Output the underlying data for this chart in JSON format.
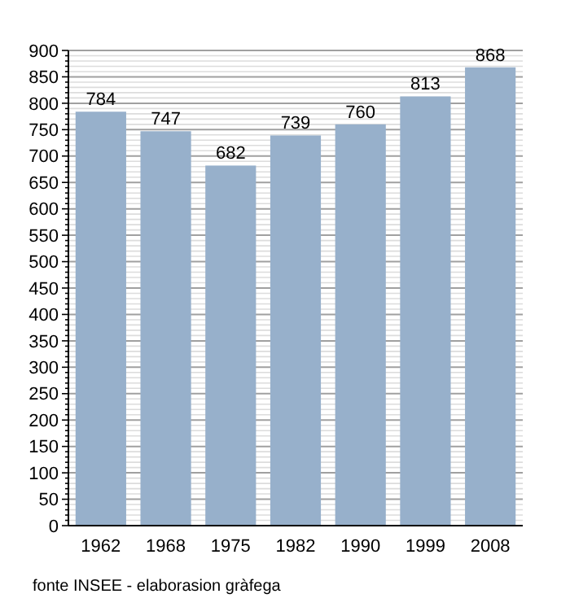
{
  "chart_data": {
    "type": "bar",
    "categories": [
      "1962",
      "1968",
      "1975",
      "1982",
      "1990",
      "1999",
      "2008"
    ],
    "values": [
      784,
      747,
      682,
      739,
      760,
      813,
      868
    ],
    "color": "#97b0cb",
    "data_labels": true,
    "grid": "y",
    "ylim": [
      0,
      900
    ],
    "yticks": [
      0,
      {
        "value": 10,
        "label": null
      },
      {
        "value": 20,
        "label": null
      },
      {
        "value": 30,
        "label": null
      },
      {
        "value": 40,
        "label": null
      },
      50,
      {
        "value": 60,
        "label": null
      },
      {
        "value": 70,
        "label": null
      },
      {
        "value": 80,
        "label": null
      },
      {
        "value": 90,
        "label": null
      },
      100,
      {
        "value": 110,
        "label": null
      },
      {
        "value": 120,
        "label": null
      },
      {
        "value": 130,
        "label": null
      },
      {
        "value": 140,
        "label": null
      },
      150,
      {
        "value": 160,
        "label": null
      },
      {
        "value": 170,
        "label": null
      },
      {
        "value": 180,
        "label": null
      },
      {
        "value": 190,
        "label": null
      },
      200,
      {
        "value": 210,
        "label": null
      },
      {
        "value": 220,
        "label": null
      },
      {
        "value": 230,
        "label": null
      },
      {
        "value": 240,
        "label": null
      },
      250,
      {
        "value": 260,
        "label": null
      },
      {
        "value": 270,
        "label": null
      },
      {
        "value": 280,
        "label": null
      },
      {
        "value": 290,
        "label": null
      },
      300,
      {
        "value": 310,
        "label": null
      },
      {
        "value": 320,
        "label": null
      },
      {
        "value": 330,
        "label": null
      },
      {
        "value": 340,
        "label": null
      },
      350,
      {
        "value": 360,
        "label": null
      },
      {
        "value": 370,
        "label": null
      },
      {
        "value": 380,
        "label": null
      },
      {
        "value": 390,
        "label": null
      },
      400,
      {
        "value": 410,
        "label": null
      },
      {
        "value": 420,
        "label": null
      },
      {
        "value": 430,
        "label": null
      },
      {
        "value": 440,
        "label": null
      },
      450,
      {
        "value": 460,
        "label": null
      },
      {
        "value": 470,
        "label": null
      },
      {
        "value": 480,
        "label": null
      },
      {
        "value": 490,
        "label": null
      },
      500,
      {
        "value": 510,
        "label": null
      },
      {
        "value": 520,
        "label": null
      },
      {
        "value": 530,
        "label": null
      },
      {
        "value": 540,
        "label": null
      },
      550,
      {
        "value": 560,
        "label": null
      },
      {
        "value": 570,
        "label": null
      },
      {
        "value": 580,
        "label": null
      },
      {
        "value": 590,
        "label": null
      },
      600,
      {
        "value": 610,
        "label": null
      },
      {
        "value": 620,
        "label": null
      },
      {
        "value": 630,
        "label": null
      },
      {
        "value": 640,
        "label": null
      },
      650,
      {
        "value": 660,
        "label": null
      },
      {
        "value": 670,
        "label": null
      },
      {
        "value": 680,
        "label": null
      },
      {
        "value": 690,
        "label": null
      },
      700,
      {
        "value": 710,
        "label": null
      },
      {
        "value": 720,
        "label": null
      },
      {
        "value": 730,
        "label": null
      },
      {
        "value": 740,
        "label": null
      },
      750,
      {
        "value": 760,
        "label": null
      },
      {
        "value": 770,
        "label": null
      },
      {
        "value": 780,
        "label": null
      },
      {
        "value": 790,
        "label": null
      },
      800,
      {
        "value": 810,
        "label": null
      },
      {
        "value": 820,
        "label": null
      },
      {
        "value": 830,
        "label": null
      },
      {
        "value": 840,
        "label": null
      },
      850,
      {
        "value": 860,
        "label": null
      },
      {
        "value": 870,
        "label": null
      },
      {
        "value": 880,
        "label": null
      },
      {
        "value": 890,
        "label": null
      },
      900
    ],
    "annotations": [
      "fonte INSEE - elaborasion gràfega"
    ]
  }
}
